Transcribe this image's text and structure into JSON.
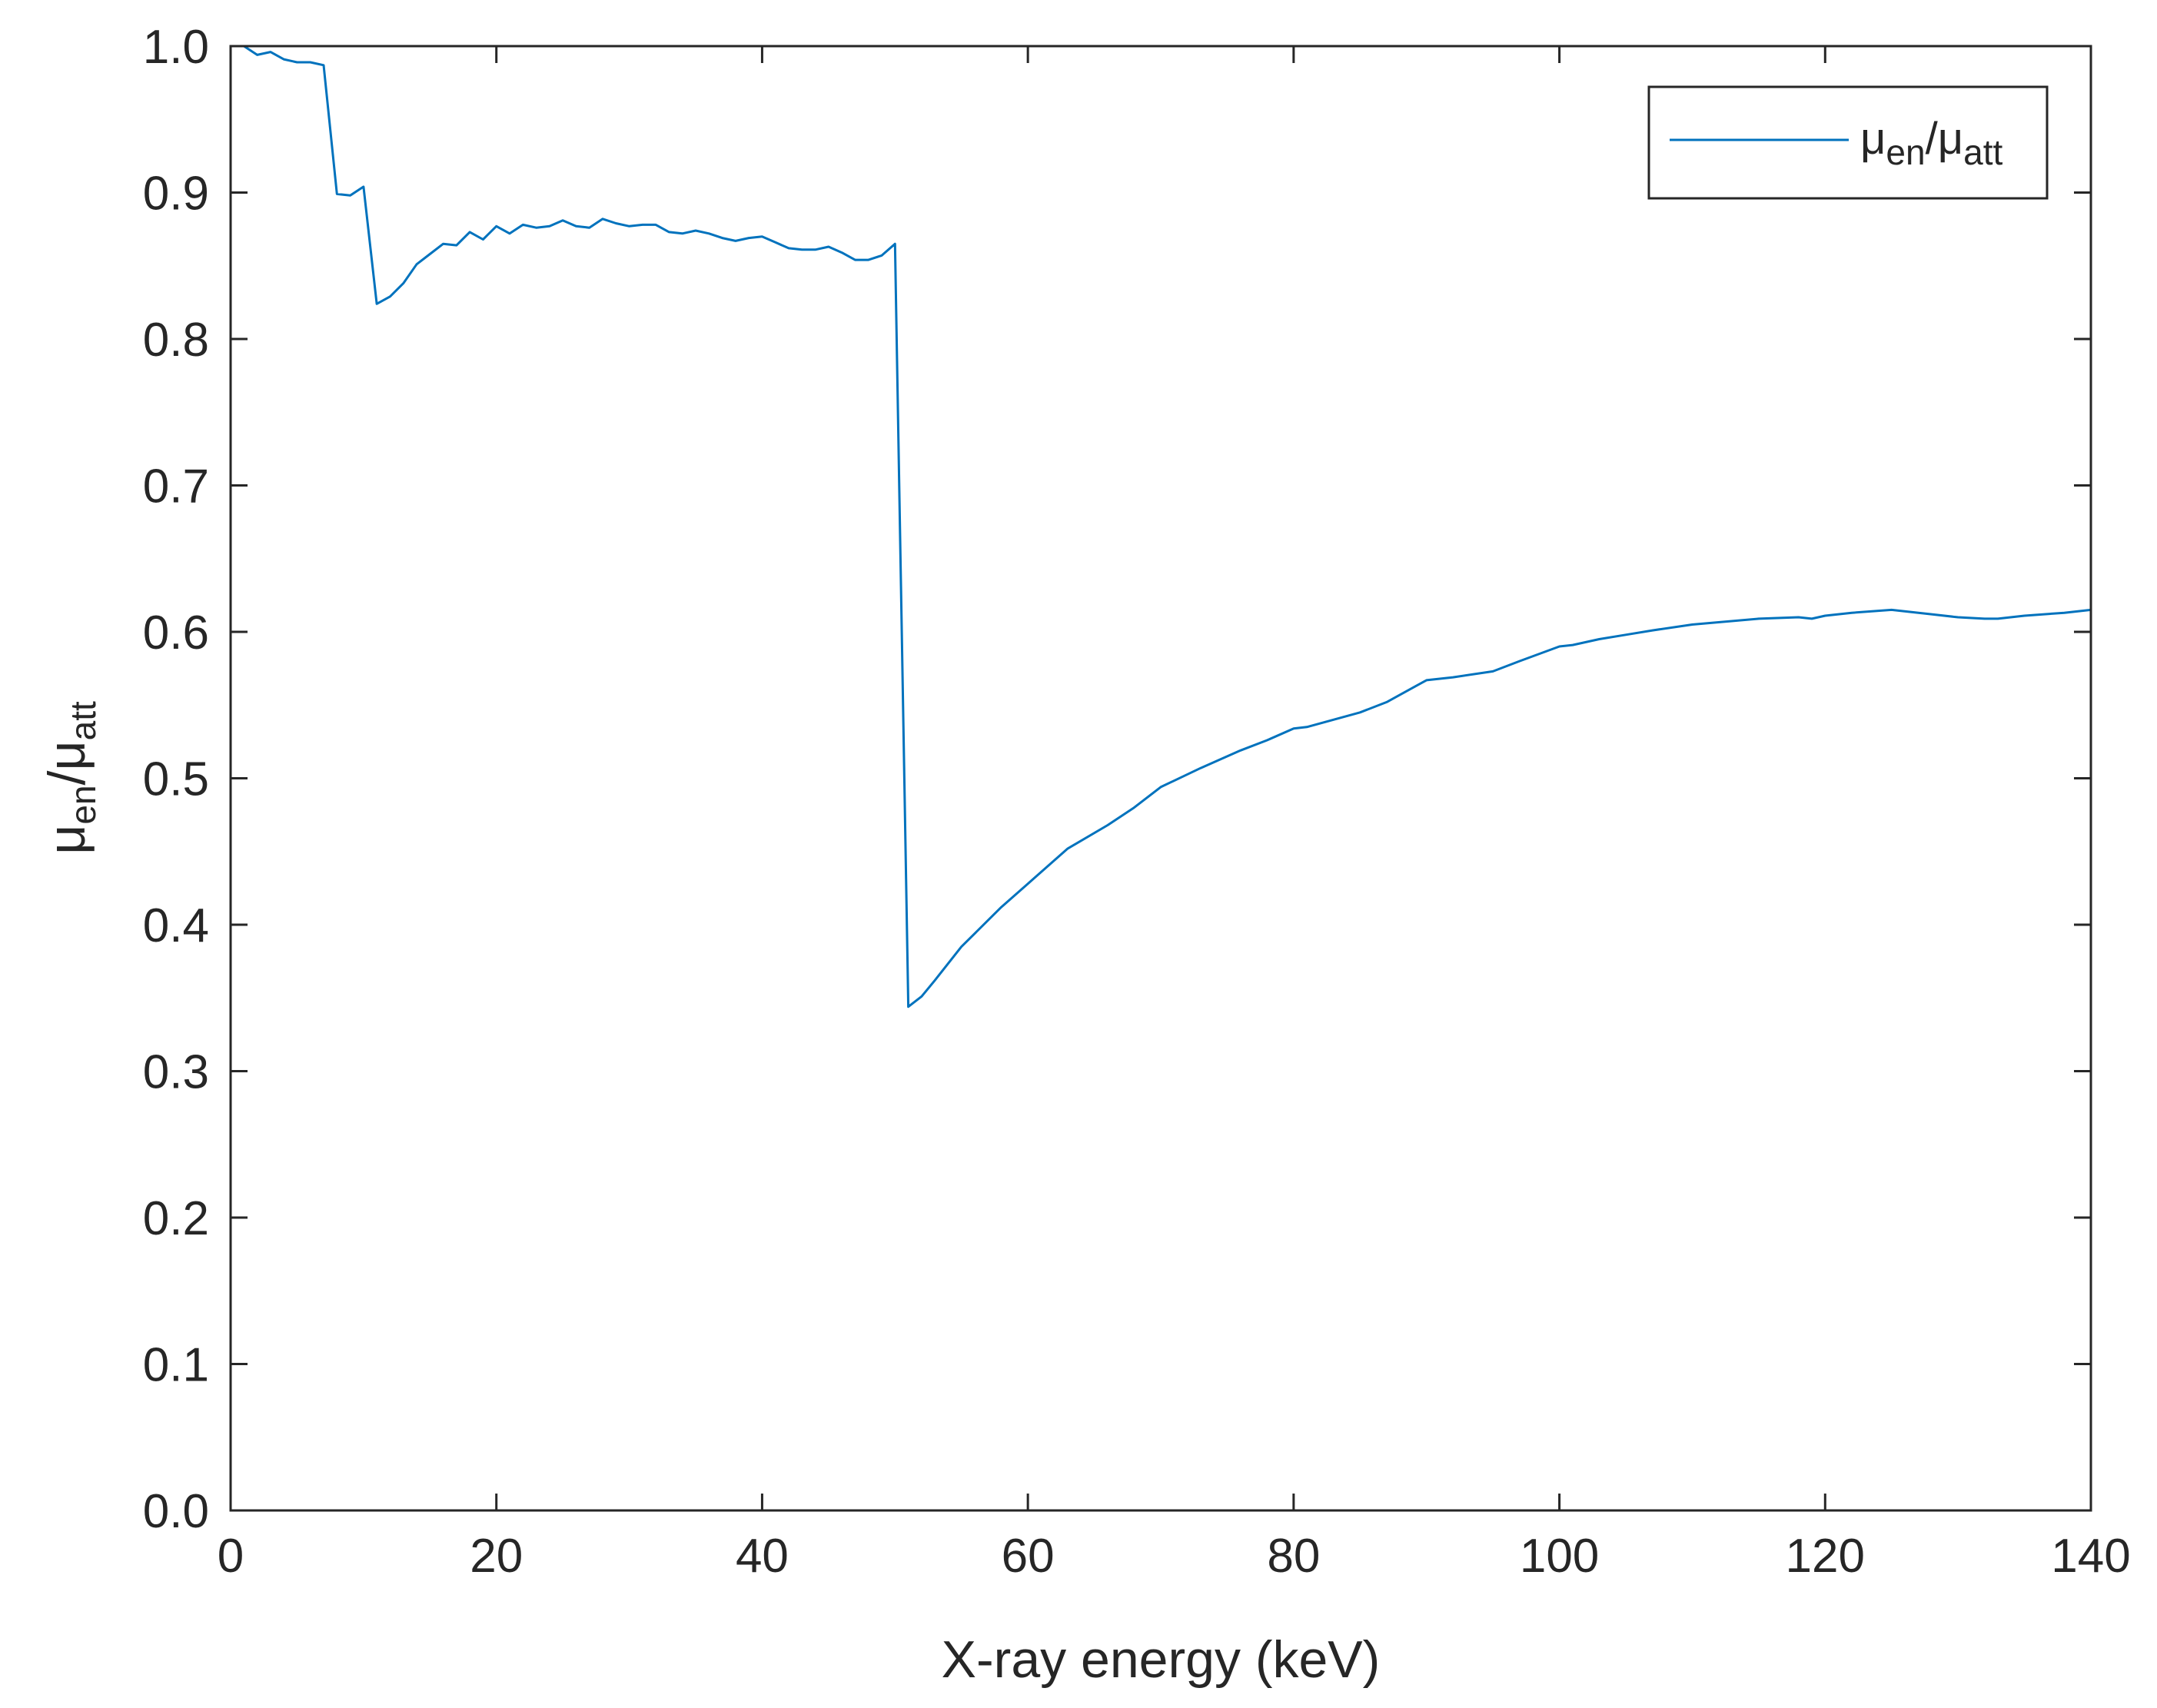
{
  "chart_data": {
    "type": "line",
    "title": "",
    "xlabel": "X-ray energy (keV)",
    "ylabel": {
      "base1": "μ",
      "sub1": "en",
      "sep": "/",
      "base2": "μ",
      "sub2": "att"
    },
    "xlim": [
      0,
      140
    ],
    "ylim": [
      0,
      1
    ],
    "grid": false,
    "legend_position": "top-right",
    "x_ticks": [
      {
        "value": 0,
        "label": "0"
      },
      {
        "value": 20,
        "label": "20"
      },
      {
        "value": 40,
        "label": "40"
      },
      {
        "value": 60,
        "label": "60"
      },
      {
        "value": 80,
        "label": "80"
      },
      {
        "value": 100,
        "label": "100"
      },
      {
        "value": 120,
        "label": "120"
      },
      {
        "value": 140,
        "label": "140"
      }
    ],
    "y_ticks": [
      {
        "value": 0.0,
        "label": "0.0"
      },
      {
        "value": 0.1,
        "label": "0.1"
      },
      {
        "value": 0.2,
        "label": "0.2"
      },
      {
        "value": 0.3,
        "label": "0.3"
      },
      {
        "value": 0.4,
        "label": "0.4"
      },
      {
        "value": 0.5,
        "label": "0.5"
      },
      {
        "value": 0.6,
        "label": "0.6"
      },
      {
        "value": 0.7,
        "label": "0.7"
      },
      {
        "value": 0.8,
        "label": "0.8"
      },
      {
        "value": 0.9,
        "label": "0.9"
      },
      {
        "value": 1.0,
        "label": "1.0"
      }
    ],
    "series": [
      {
        "name": {
          "base1": "μ",
          "sub1": "en",
          "sep": "/",
          "base2": "μ",
          "sub2": "att"
        },
        "color": "#0072BD",
        "x": [
          1,
          2,
          3,
          4,
          5,
          6,
          7,
          8,
          9,
          10,
          11,
          12,
          13,
          14,
          15,
          16,
          17,
          18,
          19,
          20,
          21,
          22,
          23,
          24,
          25,
          26,
          27,
          28,
          29,
          30,
          31,
          32,
          33,
          34,
          35,
          36,
          37,
          38,
          39,
          40,
          41,
          42,
          43,
          44,
          45,
          46,
          47,
          48,
          49,
          50,
          51,
          52,
          53,
          55,
          58,
          60,
          63,
          66,
          68,
          70,
          73,
          76,
          78,
          80,
          81,
          83,
          85,
          87,
          88,
          90,
          92,
          95,
          97,
          100,
          101,
          103,
          105,
          107,
          110,
          115,
          118,
          119,
          120,
          122,
          125,
          128,
          130,
          132,
          133,
          135,
          138,
          140
        ],
        "y": [
          1.0,
          0.994,
          0.996,
          0.991,
          0.989,
          0.989,
          0.987,
          0.899,
          0.898,
          0.904,
          0.824,
          0.829,
          0.838,
          0.851,
          0.858,
          0.865,
          0.864,
          0.873,
          0.868,
          0.877,
          0.872,
          0.878,
          0.876,
          0.877,
          0.881,
          0.877,
          0.876,
          0.882,
          0.879,
          0.877,
          0.878,
          0.878,
          0.873,
          0.872,
          0.874,
          0.872,
          0.869,
          0.867,
          0.869,
          0.87,
          0.866,
          0.862,
          0.861,
          0.861,
          0.863,
          0.859,
          0.854,
          0.854,
          0.857,
          0.865,
          0.344,
          0.351,
          0.362,
          0.385,
          0.412,
          0.428,
          0.452,
          0.468,
          0.48,
          0.494,
          0.507,
          0.519,
          0.526,
          0.534,
          0.535,
          0.54,
          0.545,
          0.552,
          0.557,
          0.567,
          0.569,
          0.573,
          0.58,
          0.59,
          0.591,
          0.595,
          0.598,
          0.601,
          0.605,
          0.609,
          0.61,
          0.609,
          0.611,
          0.613,
          0.615,
          0.612,
          0.61,
          0.609,
          0.609,
          0.611,
          0.613,
          0.615
        ]
      }
    ]
  }
}
